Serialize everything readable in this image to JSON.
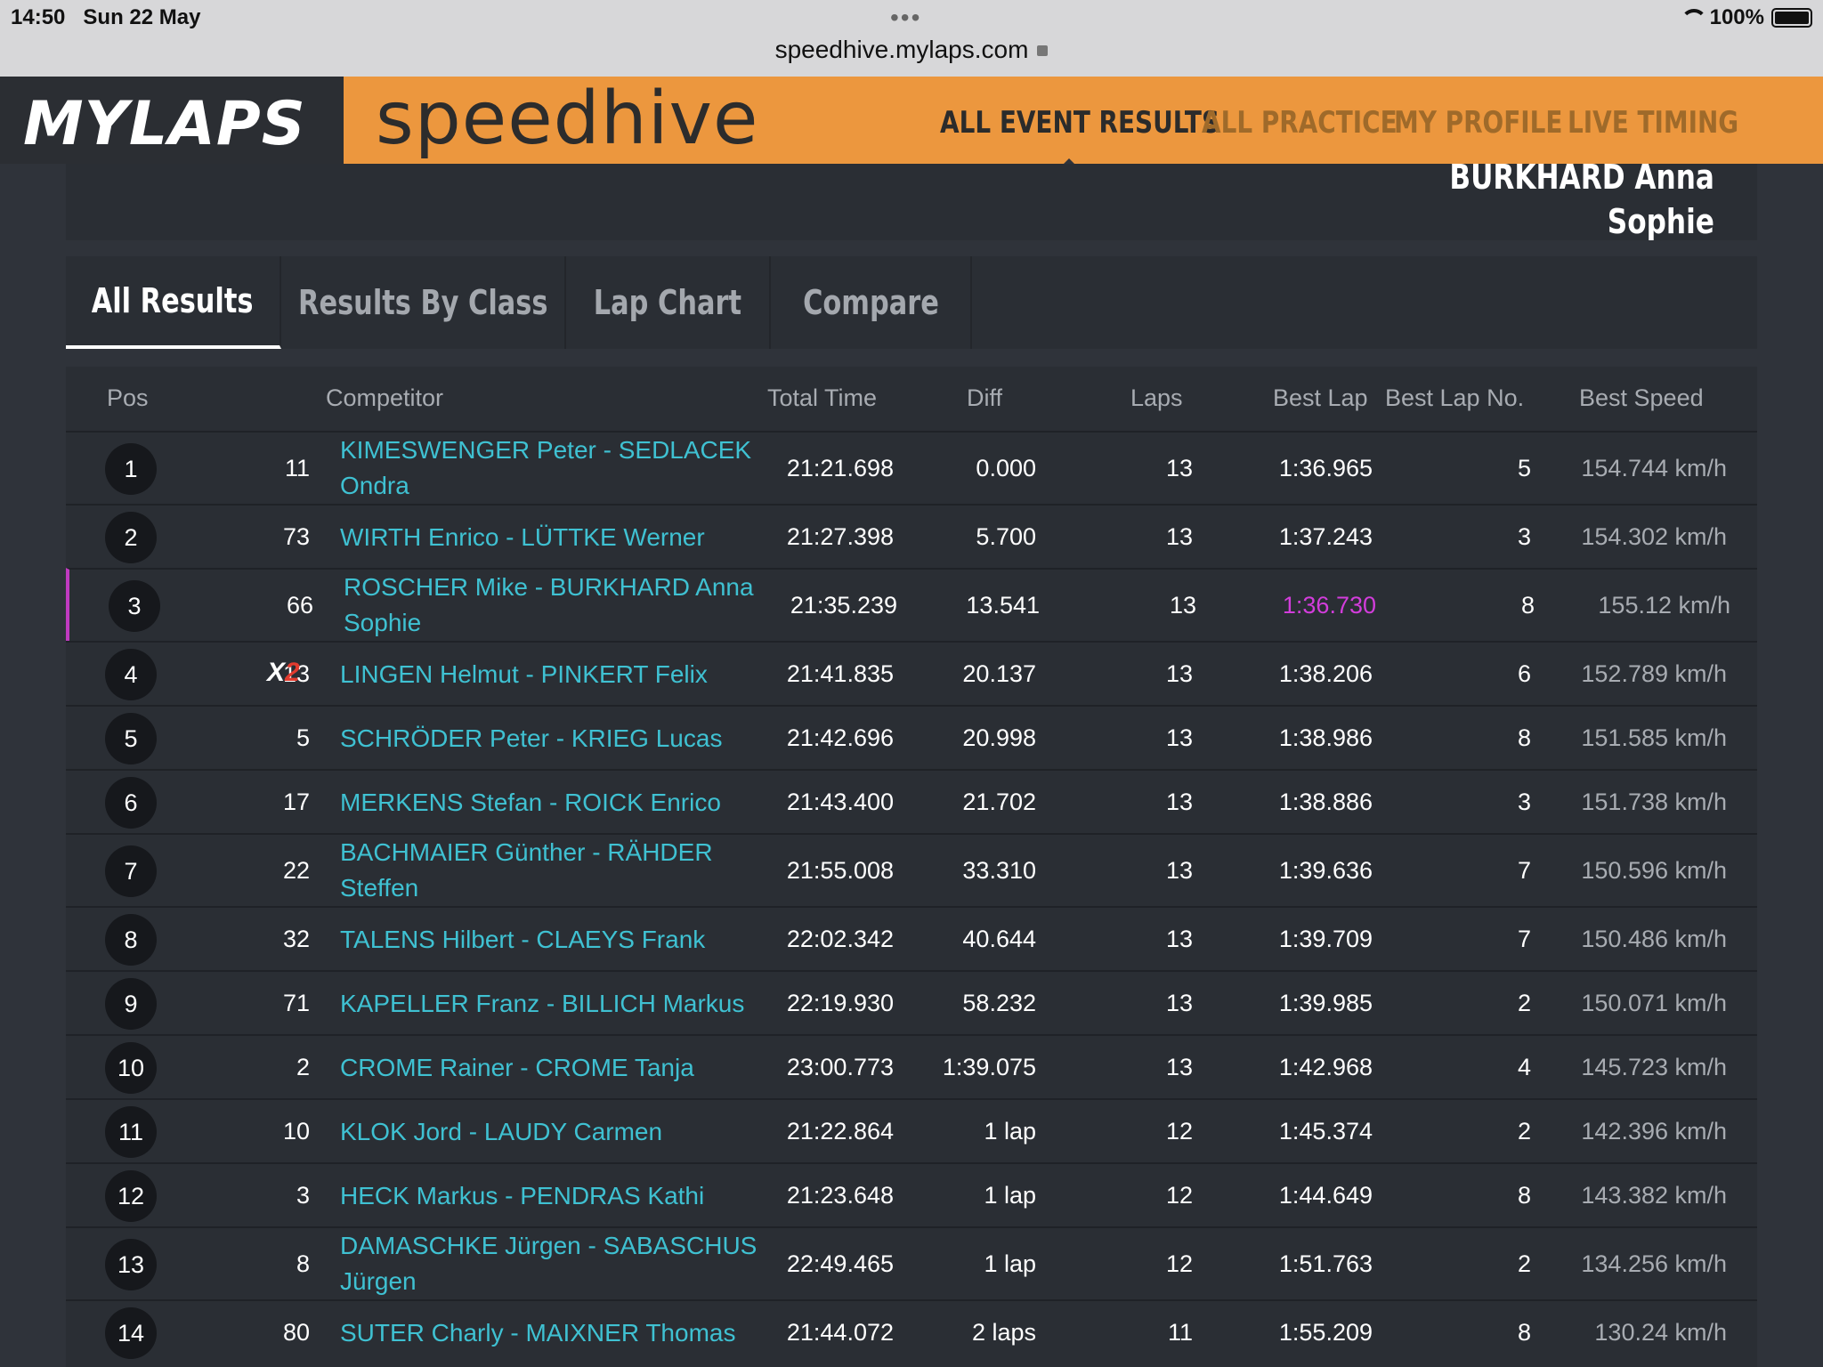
{
  "status_bar": {
    "time": "14:50",
    "date": "Sun 22 May",
    "url": "speedhive.mylaps.com",
    "battery": "100%"
  },
  "header": {
    "brand": "MYLAPS",
    "product": "speedhive",
    "nav": [
      "ALL EVENT RESULTS",
      "ALL PRACTICE",
      "MY PROFILE",
      "LIVE TIMING"
    ]
  },
  "winner_panel": {
    "line1": "BURKHARD Anna",
    "line2": "Sophie"
  },
  "tabs": [
    "All Results",
    "Results By Class",
    "Lap Chart",
    "Compare"
  ],
  "table": {
    "headers": [
      "Pos",
      "Competitor",
      "Total Time",
      "Diff",
      "Laps",
      "Best Lap",
      "Best Lap No.",
      "Best Speed"
    ],
    "rows": [
      {
        "pos": "1",
        "no": "11",
        "name": "KIMESWENGER Peter - SEDLACEK Ondra",
        "total": "21:21.698",
        "diff": "0.000",
        "laps": "13",
        "best": "1:36.965",
        "bestno": "5",
        "speed": "154.744 km/h"
      },
      {
        "pos": "2",
        "no": "73",
        "name": "WIRTH Enrico - LÜTTKE Werner",
        "total": "21:27.398",
        "diff": "5.700",
        "laps": "13",
        "best": "1:37.243",
        "bestno": "3",
        "speed": "154.302 km/h"
      },
      {
        "pos": "3",
        "no": "66",
        "name": "ROSCHER Mike - BURKHARD Anna Sophie",
        "total": "21:35.239",
        "diff": "13.541",
        "laps": "13",
        "best": "1:36.730",
        "bestno": "8",
        "speed": "155.12 km/h"
      },
      {
        "pos": "4",
        "no": "13",
        "badge_x": "X",
        "badge_2": "2",
        "name": "LINGEN Helmut - PINKERT Felix",
        "total": "21:41.835",
        "diff": "20.137",
        "laps": "13",
        "best": "1:38.206",
        "bestno": "6",
        "speed": "152.789 km/h"
      },
      {
        "pos": "5",
        "no": "5",
        "name": "SCHRÖDER Peter - KRIEG Lucas",
        "total": "21:42.696",
        "diff": "20.998",
        "laps": "13",
        "best": "1:38.986",
        "bestno": "8",
        "speed": "151.585 km/h"
      },
      {
        "pos": "6",
        "no": "17",
        "name": "MERKENS Stefan - ROICK Enrico",
        "total": "21:43.400",
        "diff": "21.702",
        "laps": "13",
        "best": "1:38.886",
        "bestno": "3",
        "speed": "151.738 km/h"
      },
      {
        "pos": "7",
        "no": "22",
        "name": "BACHMAIER Günther - RÄHDER Steffen",
        "total": "21:55.008",
        "diff": "33.310",
        "laps": "13",
        "best": "1:39.636",
        "bestno": "7",
        "speed": "150.596 km/h"
      },
      {
        "pos": "8",
        "no": "32",
        "name": "TALENS Hilbert - CLAEYS Frank",
        "total": "22:02.342",
        "diff": "40.644",
        "laps": "13",
        "best": "1:39.709",
        "bestno": "7",
        "speed": "150.486 km/h"
      },
      {
        "pos": "9",
        "no": "71",
        "name": "KAPELLER Franz - BILLICH Markus",
        "total": "22:19.930",
        "diff": "58.232",
        "laps": "13",
        "best": "1:39.985",
        "bestno": "2",
        "speed": "150.071 km/h"
      },
      {
        "pos": "10",
        "no": "2",
        "name": "CROME Rainer - CROME Tanja",
        "total": "23:00.773",
        "diff": "1:39.075",
        "laps": "13",
        "best": "1:42.968",
        "bestno": "4",
        "speed": "145.723 km/h"
      },
      {
        "pos": "11",
        "no": "10",
        "name": "KLOK Jord - LAUDY Carmen",
        "total": "21:22.864",
        "diff": "1 lap",
        "laps": "12",
        "best": "1:45.374",
        "bestno": "2",
        "speed": "142.396 km/h"
      },
      {
        "pos": "12",
        "no": "3",
        "name": "HECK Markus - PENDRAS Kathi",
        "total": "21:23.648",
        "diff": "1 lap",
        "laps": "12",
        "best": "1:44.649",
        "bestno": "8",
        "speed": "143.382 km/h"
      },
      {
        "pos": "13",
        "no": "8",
        "name": "DAMASCHKE Jürgen - SABASCHUS Jürgen",
        "total": "22:49.465",
        "diff": "1 lap",
        "laps": "12",
        "best": "1:51.763",
        "bestno": "2",
        "speed": "134.256 km/h"
      },
      {
        "pos": "14",
        "no": "80",
        "name": "SUTER Charly - MAIXNER Thomas",
        "total": "21:44.072",
        "diff": "2 laps",
        "laps": "11",
        "best": "1:55.209",
        "bestno": "8",
        "speed": "130.24 km/h"
      }
    ]
  },
  "colors": {
    "accent": "#ec973e",
    "link": "#3fc1d2",
    "fastest": "#d23ddb",
    "background": "#2f333a",
    "panel": "#2a2e34"
  }
}
